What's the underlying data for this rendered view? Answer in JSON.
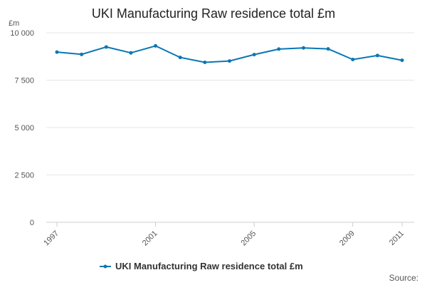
{
  "chart_data": {
    "type": "line",
    "title": "UKI Manufacturing Raw residence total £m",
    "ylabel": "£m",
    "xlabel": "",
    "ylim": [
      0,
      10000
    ],
    "yticks": [
      0,
      2500,
      5000,
      7500,
      10000
    ],
    "ytick_labels": [
      "0",
      "2 500",
      "5 000",
      "7 500",
      "10 000"
    ],
    "xlim": [
      1997,
      2011
    ],
    "xticks": [
      1997,
      2001,
      2005,
      2009,
      2011
    ],
    "xtick_labels": [
      "1997",
      "2001",
      "2005",
      "2009",
      "2011"
    ],
    "grid": true,
    "legend_position": "bottom",
    "series": [
      {
        "name": "UKI Manufacturing Raw residence total £m",
        "color": "#0a77b5",
        "x": [
          1997,
          1998,
          1999,
          2000,
          2001,
          2002,
          2003,
          2004,
          2005,
          2006,
          2007,
          2008,
          2009,
          2010,
          2011
        ],
        "values": [
          8980,
          8860,
          9250,
          8940,
          9310,
          8700,
          8440,
          8510,
          8850,
          9140,
          9200,
          9150,
          8590,
          8800,
          8550
        ]
      }
    ]
  },
  "source_label": "Source:"
}
